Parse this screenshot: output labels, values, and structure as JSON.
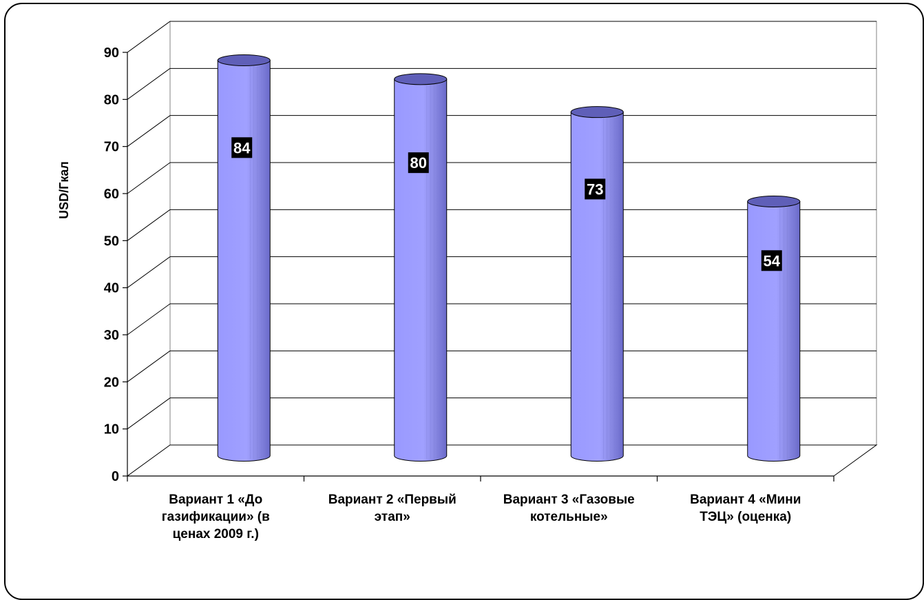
{
  "chart_data": {
    "type": "bar",
    "categories": [
      "Вариант 1 «До газификации» (в ценах 2009 г.)",
      "Вариант 2 «Первый этап»",
      "Вариант 3 «Газовые котельные»",
      "Вариант 4 «Мини ТЭЦ» (оценка)"
    ],
    "category_lines": [
      [
        "Вариант 1 «До",
        "газификации» (в",
        "ценах 2009 г.)"
      ],
      [
        "Вариант 2 «Первый",
        "этап»"
      ],
      [
        "Вариант 3 «Газовые",
        "котельные»"
      ],
      [
        "Вариант 4 «Мини",
        "ТЭЦ» (оценка)"
      ]
    ],
    "values": [
      84,
      80,
      73,
      54
    ],
    "data_labels": [
      "84",
      "80",
      "73",
      "54"
    ],
    "ylabel": "USD/Гкал",
    "ylim": [
      0,
      90
    ],
    "yticks": [
      "0",
      "10",
      "20",
      "30",
      "40",
      "50",
      "60",
      "70",
      "80",
      "90"
    ],
    "grid": true,
    "bar_style": "3d-cylinder",
    "bar_color": "#9999ff",
    "bar_shade_color": "#6a6ac9",
    "bar_top_color": "#5f5fb8",
    "label_bg": "#000000",
    "label_fg": "#ffffff"
  }
}
